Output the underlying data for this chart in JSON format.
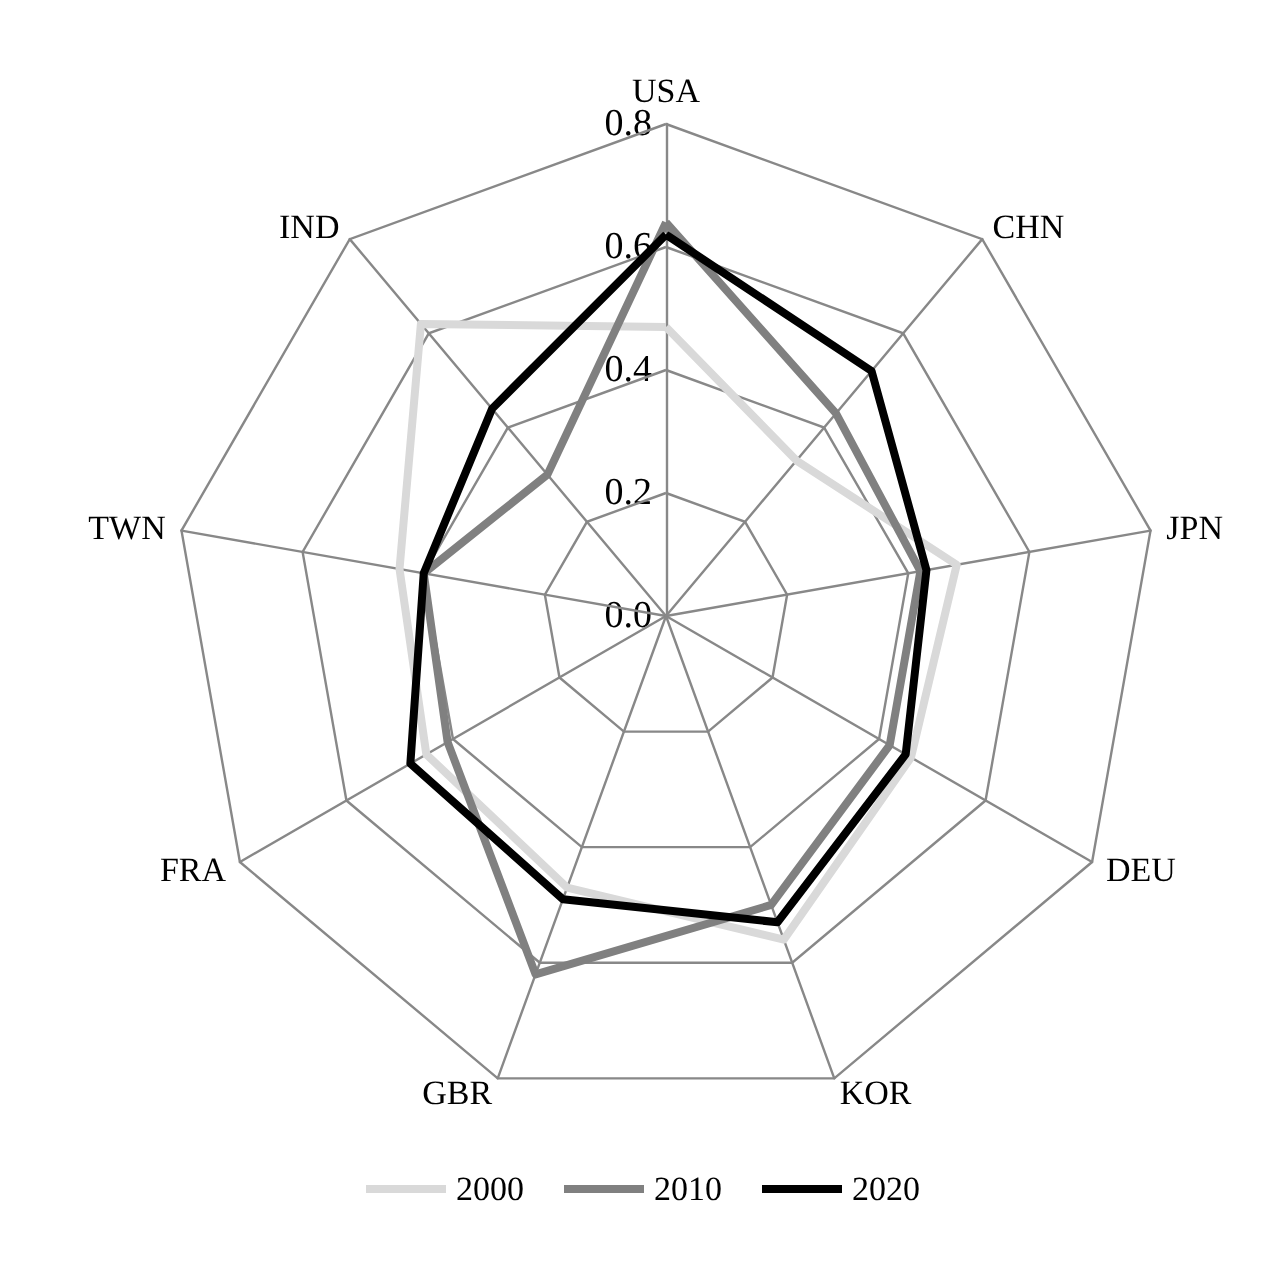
{
  "chart_data": {
    "type": "radar",
    "categories": [
      "USA",
      "CHN",
      "JPN",
      "DEU",
      "KOR",
      "GBR",
      "FRA",
      "TWN",
      "IND"
    ],
    "series": [
      {
        "name": "2000",
        "color": "#d9d9d9",
        "values": [
          0.47,
          0.33,
          0.48,
          0.46,
          0.56,
          0.47,
          0.45,
          0.44,
          0.62
        ]
      },
      {
        "name": "2010",
        "color": "#808080",
        "values": [
          0.64,
          0.43,
          0.42,
          0.42,
          0.5,
          0.62,
          0.41,
          0.4,
          0.3
        ]
      },
      {
        "name": "2020",
        "color": "#000000",
        "values": [
          0.62,
          0.52,
          0.43,
          0.45,
          0.53,
          0.49,
          0.48,
          0.4,
          0.44
        ]
      }
    ],
    "ylim": [
      0,
      0.8
    ],
    "yticks": [
      {
        "value": 0,
        "label": "0.0"
      },
      {
        "value": 0.2,
        "label": "0.2"
      },
      {
        "value": 0.4,
        "label": "0.4"
      },
      {
        "value": 0.6,
        "label": "0.6"
      },
      {
        "value": 0.8,
        "label": "0.8"
      }
    ],
    "legend": "bottom",
    "marker": "none",
    "line_style": "solid"
  }
}
